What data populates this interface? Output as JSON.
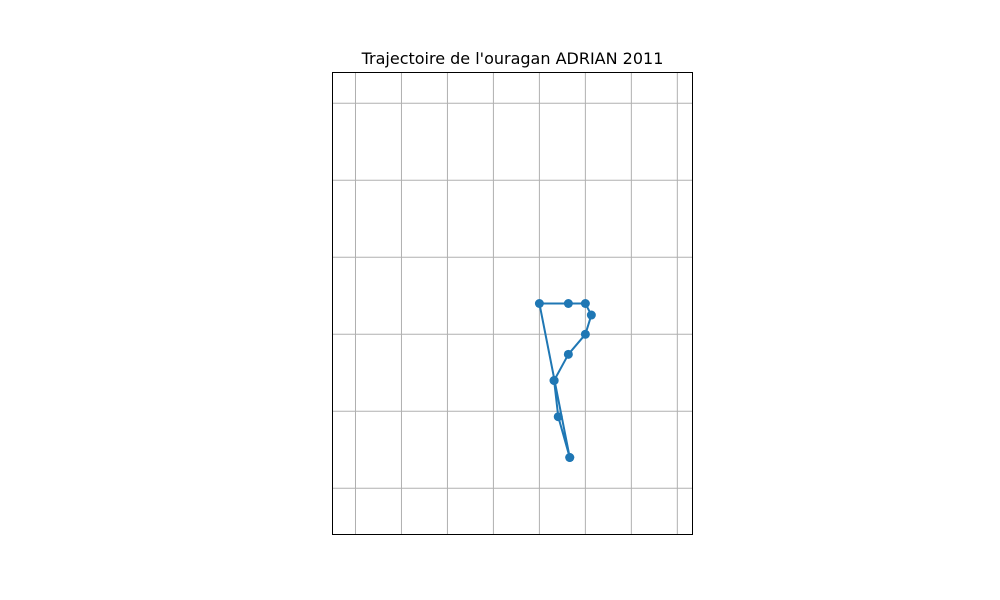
{
  "chart_data": {
    "type": "line",
    "title": "Trajectoire de l'ouragan ADRIAN 2011",
    "xlabel": "",
    "ylabel": "",
    "xlim": [
      -106.5,
      -98.67
    ],
    "ylim": [
      9.4,
      15.4
    ],
    "grid": true,
    "marker": "circle",
    "series": [
      {
        "color": "#1f77b4",
        "points": [
          {
            "x": -101.34,
            "y": 10.4
          },
          {
            "x": -101.59,
            "y": 10.93
          },
          {
            "x": -101.68,
            "y": 11.4
          },
          {
            "x": -101.68,
            "y": 11.4
          },
          {
            "x": -101.37,
            "y": 11.74
          },
          {
            "x": -101.0,
            "y": 12.0
          },
          {
            "x": -100.87,
            "y": 12.25
          },
          {
            "x": -101.0,
            "y": 12.4
          },
          {
            "x": -101.37,
            "y": 12.4
          },
          {
            "x": -102.0,
            "y": 12.4
          },
          {
            "x": -101.34,
            "y": 10.4
          }
        ]
      }
    ]
  }
}
